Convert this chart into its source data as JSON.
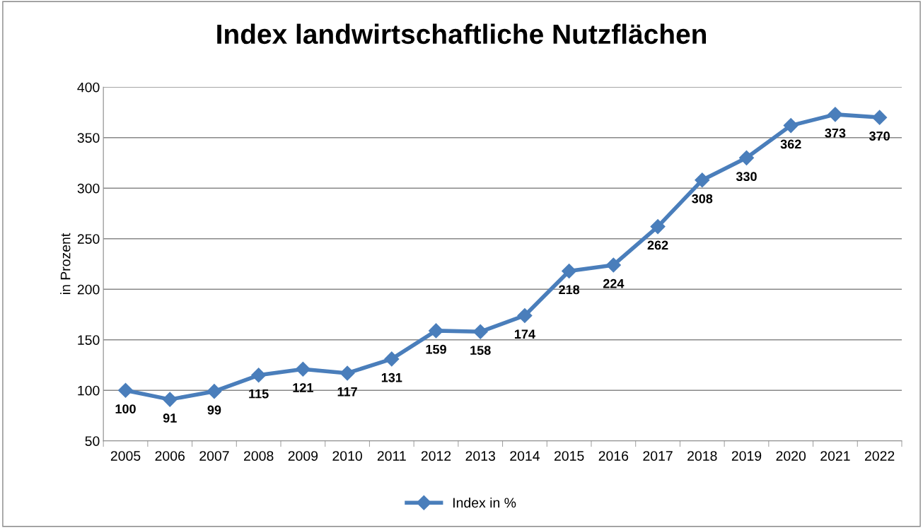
{
  "chart_data": {
    "type": "line",
    "title": "Index landwirtschaftliche Nutzflächen",
    "ylabel": "in Prozent",
    "categories": [
      "2005",
      "2006",
      "2007",
      "2008",
      "2009",
      "2010",
      "2011",
      "2012",
      "2013",
      "2014",
      "2015",
      "2016",
      "2017",
      "2018",
      "2019",
      "2020",
      "2021",
      "2022"
    ],
    "series": [
      {
        "name": "Index in %",
        "color": "#4a7ebb",
        "values": [
          100,
          91,
          99,
          115,
          121,
          117,
          131,
          159,
          158,
          174,
          218,
          224,
          262,
          308,
          330,
          362,
          373,
          370
        ]
      }
    ],
    "ylim": [
      50,
      400
    ],
    "yticks": [
      50,
      100,
      150,
      200,
      250,
      300,
      350,
      400
    ],
    "grid": "y",
    "legend": "bottom",
    "marker": "diamond",
    "line_style": "solid",
    "data_labels": true
  }
}
